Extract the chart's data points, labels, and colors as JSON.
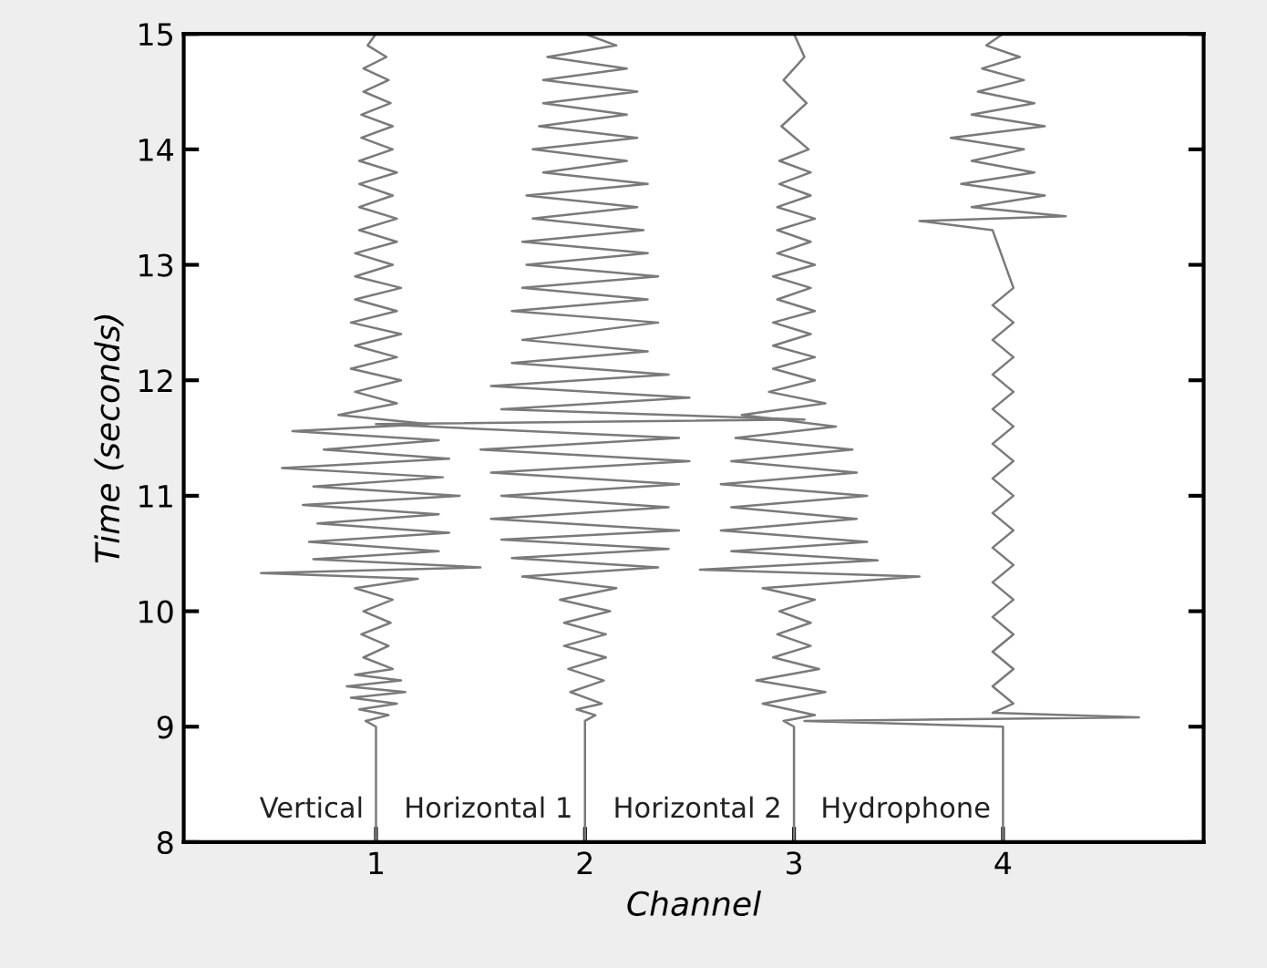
{
  "chart_data": {
    "type": "line",
    "xlabel": "Channel",
    "ylabel": "Time (seconds)",
    "xlim": [
      0.08,
      4.96
    ],
    "xticks": [
      1,
      2,
      3,
      4
    ],
    "ylim": [
      8,
      15
    ],
    "yticks": [
      8,
      9,
      10,
      11,
      12,
      13,
      14,
      15
    ],
    "grid": false,
    "legend": false,
    "marker": "none",
    "line_style": "solid",
    "series": [
      {
        "name": "Vertical",
        "color": "#7a7a7a",
        "x": [
          1.0,
          1.0,
          1.0,
          0.95,
          1.06,
          0.92,
          1.1,
          0.88,
          1.14,
          0.86,
          1.12,
          0.9,
          1.08,
          0.94,
          1.06,
          0.93,
          1.07,
          0.94,
          1.08,
          0.9,
          1.2,
          0.45,
          1.5,
          0.7,
          1.3,
          0.68,
          1.35,
          0.72,
          1.3,
          0.65,
          1.4,
          0.7,
          1.32,
          0.55,
          1.35,
          0.75,
          1.3,
          0.6,
          1.25,
          0.82,
          1.1,
          0.9,
          1.12,
          0.88,
          1.1,
          0.9,
          1.12,
          0.88,
          1.1,
          0.9,
          1.12,
          0.9,
          1.08,
          0.9,
          1.1,
          0.92,
          1.1,
          0.92,
          1.08,
          0.92,
          1.1,
          0.92,
          1.08,
          0.93,
          1.08,
          0.93,
          1.07,
          0.94,
          1.06,
          0.94,
          1.05,
          0.96,
          1.0
        ],
        "values": [
          8.0,
          8.9,
          9.0,
          9.05,
          9.1,
          9.15,
          9.2,
          9.25,
          9.3,
          9.35,
          9.4,
          9.45,
          9.5,
          9.6,
          9.7,
          9.8,
          9.9,
          10.0,
          10.1,
          10.2,
          10.28,
          10.33,
          10.38,
          10.45,
          10.52,
          10.6,
          10.68,
          10.76,
          10.84,
          10.92,
          11.0,
          11.08,
          11.16,
          11.24,
          11.32,
          11.4,
          11.48,
          11.56,
          11.62,
          11.7,
          11.8,
          11.9,
          12.0,
          12.1,
          12.2,
          12.3,
          12.4,
          12.5,
          12.6,
          12.7,
          12.8,
          12.9,
          13.0,
          13.1,
          13.2,
          13.3,
          13.4,
          13.5,
          13.6,
          13.7,
          13.8,
          13.9,
          14.0,
          14.1,
          14.2,
          14.3,
          14.4,
          14.5,
          14.6,
          14.7,
          14.8,
          14.9,
          15.0
        ]
      },
      {
        "name": "Horizontal 1",
        "color": "#7a7a7a",
        "x": [
          2.0,
          2.0,
          2.05,
          1.96,
          2.08,
          1.93,
          2.09,
          1.92,
          2.1,
          1.9,
          2.1,
          1.9,
          2.12,
          1.88,
          2.15,
          1.7,
          2.35,
          1.65,
          2.4,
          1.6,
          2.45,
          1.55,
          2.4,
          1.6,
          2.45,
          1.55,
          2.5,
          1.5,
          2.45,
          1.0,
          3.05,
          1.6,
          2.5,
          1.55,
          2.4,
          1.65,
          2.3,
          1.7,
          2.35,
          1.65,
          2.3,
          1.7,
          2.35,
          1.72,
          2.3,
          1.7,
          2.28,
          1.75,
          2.25,
          1.72,
          2.3,
          1.8,
          2.2,
          1.75,
          2.25,
          1.78,
          2.2,
          1.8,
          2.25,
          1.8,
          2.2,
          1.82,
          2.15,
          2.0
        ],
        "values": [
          8.0,
          9.05,
          9.1,
          9.15,
          9.2,
          9.3,
          9.4,
          9.5,
          9.6,
          9.7,
          9.8,
          9.9,
          10.0,
          10.1,
          10.2,
          10.3,
          10.38,
          10.46,
          10.54,
          10.62,
          10.7,
          10.8,
          10.9,
          11.0,
          11.1,
          11.2,
          11.3,
          11.4,
          11.5,
          11.62,
          11.66,
          11.75,
          11.85,
          11.95,
          12.05,
          12.15,
          12.25,
          12.35,
          12.5,
          12.6,
          12.7,
          12.8,
          12.9,
          13.0,
          13.1,
          13.2,
          13.3,
          13.4,
          13.5,
          13.6,
          13.7,
          13.8,
          13.9,
          14.0,
          14.1,
          14.2,
          14.3,
          14.4,
          14.5,
          14.6,
          14.7,
          14.8,
          14.9,
          15.0
        ]
      },
      {
        "name": "Horizontal 2",
        "color": "#7a7a7a",
        "x": [
          3.0,
          3.0,
          2.95,
          3.1,
          2.85,
          3.15,
          2.82,
          3.12,
          2.9,
          3.08,
          2.92,
          3.08,
          2.93,
          3.1,
          2.85,
          3.6,
          2.55,
          3.4,
          2.7,
          3.35,
          2.65,
          3.3,
          2.7,
          3.35,
          2.65,
          3.3,
          2.7,
          3.28,
          2.72,
          3.2,
          2.75,
          3.15,
          2.88,
          3.1,
          2.9,
          3.1,
          2.9,
          3.08,
          2.9,
          3.1,
          2.92,
          3.08,
          2.9,
          3.1,
          2.92,
          3.08,
          2.92,
          3.1,
          2.92,
          3.08,
          2.93,
          3.08,
          2.93,
          3.07,
          2.94,
          3.06,
          2.95,
          3.05,
          3.0
        ],
        "values": [
          8.0,
          9.0,
          9.05,
          9.1,
          9.2,
          9.3,
          9.4,
          9.5,
          9.6,
          9.7,
          9.8,
          9.9,
          10.0,
          10.1,
          10.2,
          10.3,
          10.36,
          10.44,
          10.52,
          10.6,
          10.7,
          10.8,
          10.9,
          11.0,
          11.1,
          11.2,
          11.3,
          11.4,
          11.5,
          11.6,
          11.7,
          11.8,
          11.9,
          12.0,
          12.1,
          12.2,
          12.3,
          12.4,
          12.5,
          12.6,
          12.7,
          12.8,
          12.9,
          13.0,
          13.1,
          13.2,
          13.3,
          13.4,
          13.5,
          13.6,
          13.7,
          13.8,
          13.9,
          14.0,
          14.2,
          14.4,
          14.6,
          14.8,
          15.0
        ]
      },
      {
        "name": "Hydrophone",
        "color": "#7a7a7a",
        "x": [
          4.0,
          4.0,
          3.05,
          4.65,
          3.95,
          4.05,
          3.95,
          4.05,
          3.95,
          4.05,
          3.95,
          4.05,
          3.95,
          4.05,
          3.95,
          4.05,
          3.95,
          4.05,
          3.95,
          4.05,
          3.95,
          4.05,
          3.95,
          4.05,
          3.95,
          4.05,
          3.95,
          4.05,
          3.95,
          4.05,
          3.95,
          3.6,
          4.3,
          3.85,
          4.2,
          3.8,
          4.15,
          3.85,
          4.1,
          3.75,
          4.2,
          3.85,
          4.15,
          3.88,
          4.1,
          3.9,
          4.08,
          3.92,
          4.0
        ],
        "values": [
          8.0,
          9.0,
          9.05,
          9.08,
          9.12,
          9.2,
          9.35,
          9.5,
          9.65,
          9.8,
          9.95,
          10.1,
          10.25,
          10.4,
          10.55,
          10.7,
          10.85,
          11.0,
          11.15,
          11.3,
          11.45,
          11.6,
          11.75,
          11.9,
          12.05,
          12.2,
          12.35,
          12.5,
          12.65,
          12.8,
          13.3,
          13.38,
          13.42,
          13.5,
          13.6,
          13.7,
          13.8,
          13.9,
          14.0,
          14.1,
          14.2,
          14.3,
          14.4,
          14.5,
          14.6,
          14.7,
          14.8,
          14.9,
          15.0
        ]
      }
    ]
  }
}
